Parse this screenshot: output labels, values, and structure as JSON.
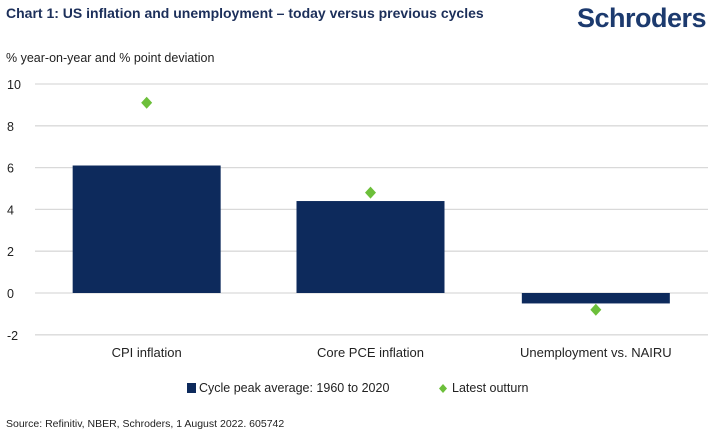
{
  "header": {
    "title": "Chart 1: US inflation and unemployment – today versus previous cycles",
    "logo": "Schroders"
  },
  "source": "Source: Refinitiv, NBER, Schroders, 1 August 2022. 605742",
  "colors": {
    "bar": "#0d2a5c",
    "diamond": "#6cbf3a",
    "grid": "#d9d9d9"
  },
  "chart_data": {
    "type": "bar",
    "title": "Chart 1: US inflation and unemployment – today versus previous cycles",
    "ylabel": "% year-on-year and % point deviation",
    "xlabel": "",
    "ylim": [
      -2,
      10
    ],
    "yticks": [
      "10",
      "8",
      "6",
      "4",
      "2",
      "0",
      "-2"
    ],
    "ytick_values": [
      10,
      8,
      6,
      4,
      2,
      0,
      -2
    ],
    "grid": true,
    "legend_placement": "bottom",
    "categories": [
      "CPI inflation",
      "Core PCE inflation",
      "Unemployment vs. NAIRU"
    ],
    "series": [
      {
        "name": "Cycle peak average: 1960 to 2020",
        "kind": "bar",
        "values": [
          6.1,
          4.4,
          -0.5
        ]
      },
      {
        "name": "Latest outturn",
        "kind": "diamond",
        "values": [
          9.1,
          4.8,
          -0.8
        ]
      }
    ]
  }
}
